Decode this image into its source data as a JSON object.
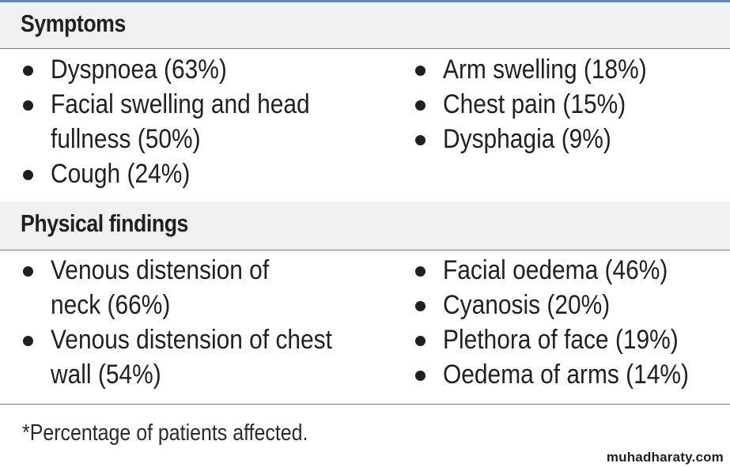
{
  "symptoms": {
    "heading": "Symptoms",
    "left": [
      "Dyspnoea (63%)",
      "Facial swelling and head fullness (50%)",
      "Cough (24%)"
    ],
    "right": [
      "Arm swelling (18%)",
      "Chest pain (15%)",
      "Dysphagia (9%)"
    ]
  },
  "physical": {
    "heading": "Physical findings",
    "left": [
      "Venous distension of neck (66%)",
      "Venous distension of chest wall (54%)"
    ],
    "right": [
      "Facial oedema (46%)",
      "Cyanosis (20%)",
      "Plethora of face (19%)",
      "Oedema of arms (14%)"
    ]
  },
  "footnote": "*Percentage of patients affected.",
  "watermark": "muhadharaty.com"
}
